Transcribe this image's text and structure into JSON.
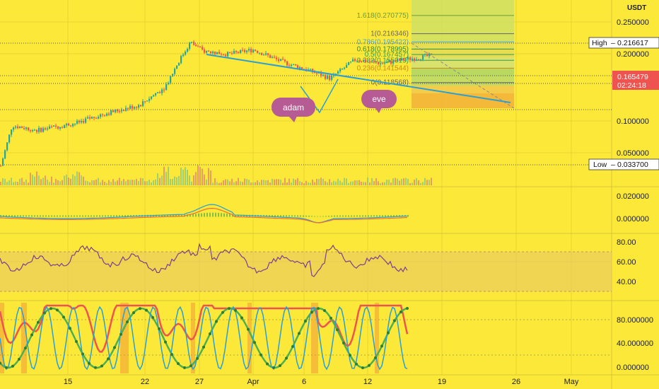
{
  "header": {
    "currency": "USDT"
  },
  "price_axis": {
    "labels": [
      "0.250000",
      "0.200000",
      "0.100000",
      "0.050000"
    ],
    "high_label": "High",
    "high_value": "0.216617",
    "low_label": "Low",
    "low_value": "0.033700",
    "last_price": "0.165479",
    "countdown": "02:24:18"
  },
  "volume_axis": {
    "labels": [
      "0.020000",
      "0.000000"
    ]
  },
  "rsi_axis": {
    "labels": [
      "80.00",
      "60.00",
      "40.00"
    ]
  },
  "stoch_axis": {
    "labels": [
      "80.000000",
      "40.000000",
      "0.000000"
    ]
  },
  "time_axis": {
    "labels": [
      "15",
      "22",
      "27",
      "Apr",
      "6",
      "12",
      "19",
      "26",
      "May"
    ]
  },
  "fib_levels": [
    {
      "label": "1.618(0.270775)",
      "value": 0.270775,
      "color": "#6d9b3a"
    },
    {
      "label": "1(0.216346)",
      "value": 0.216346,
      "color": "#666666"
    },
    {
      "label": "0.786(0.195422)",
      "value": 0.195422,
      "color": "#4aa8d8"
    },
    {
      "label": "0.618(0.178995)",
      "value": 0.178995,
      "color": "#2e8b3a"
    },
    {
      "label": "0.5(0.167457)",
      "value": 0.167457,
      "color": "#3a9b4a"
    },
    {
      "label": "0.382(0.155919)",
      "value": 0.155919,
      "color": "#3a9b4a"
    },
    {
      "label": "0.236(0.141544)",
      "value": 0.141544,
      "color": "#c98a1a"
    },
    {
      "label": "0(0.118568)",
      "value": 0.118568,
      "color": "#666666"
    }
  ],
  "annotations": [
    {
      "text": "adam"
    },
    {
      "text": "eve"
    }
  ],
  "colors": {
    "background": "#fbe839",
    "up_candle": "#26a69a",
    "down_candle": "#ef5350",
    "trendline": "#2a9fd6",
    "bubble": "#b75b94",
    "rsi_line": "#7b3f8c",
    "last_price_badge": "#ef5350"
  },
  "chart_data": {
    "type": "candlestick",
    "x_range": [
      "Mar 10",
      "May 1"
    ],
    "y_scale": "log",
    "ylim": [
      0.025,
      0.28
    ],
    "close_anchors": [
      {
        "x": "Mar 10",
        "close": 0.036
      },
      {
        "x": "Mar 12",
        "close": 0.04
      },
      {
        "x": "Mar 13",
        "close": 0.07
      },
      {
        "x": "Mar 15",
        "close": 0.066
      },
      {
        "x": "Mar 18",
        "close": 0.072
      },
      {
        "x": "Mar 20",
        "close": 0.08
      },
      {
        "x": "Mar 23",
        "close": 0.09
      },
      {
        "x": "Mar 25",
        "close": 0.112
      },
      {
        "x": "Mar 26",
        "close": 0.15
      },
      {
        "x": "Mar 27",
        "close": 0.195
      },
      {
        "x": "Mar 28",
        "close": 0.175
      },
      {
        "x": "Mar 30",
        "close": 0.168
      },
      {
        "x": "Apr 1",
        "close": 0.178
      },
      {
        "x": "Apr 3",
        "close": 0.155
      },
      {
        "x": "Apr 5",
        "close": 0.14
      },
      {
        "x": "Apr 7",
        "close": 0.125
      },
      {
        "x": "Apr 9",
        "close": 0.158
      },
      {
        "x": "Apr 11",
        "close": 0.15
      },
      {
        "x": "Apr 13",
        "close": 0.158
      },
      {
        "x": "Apr 15",
        "close": 0.165479
      }
    ],
    "high": 0.216617,
    "low": 0.0337,
    "last": 0.165479
  }
}
